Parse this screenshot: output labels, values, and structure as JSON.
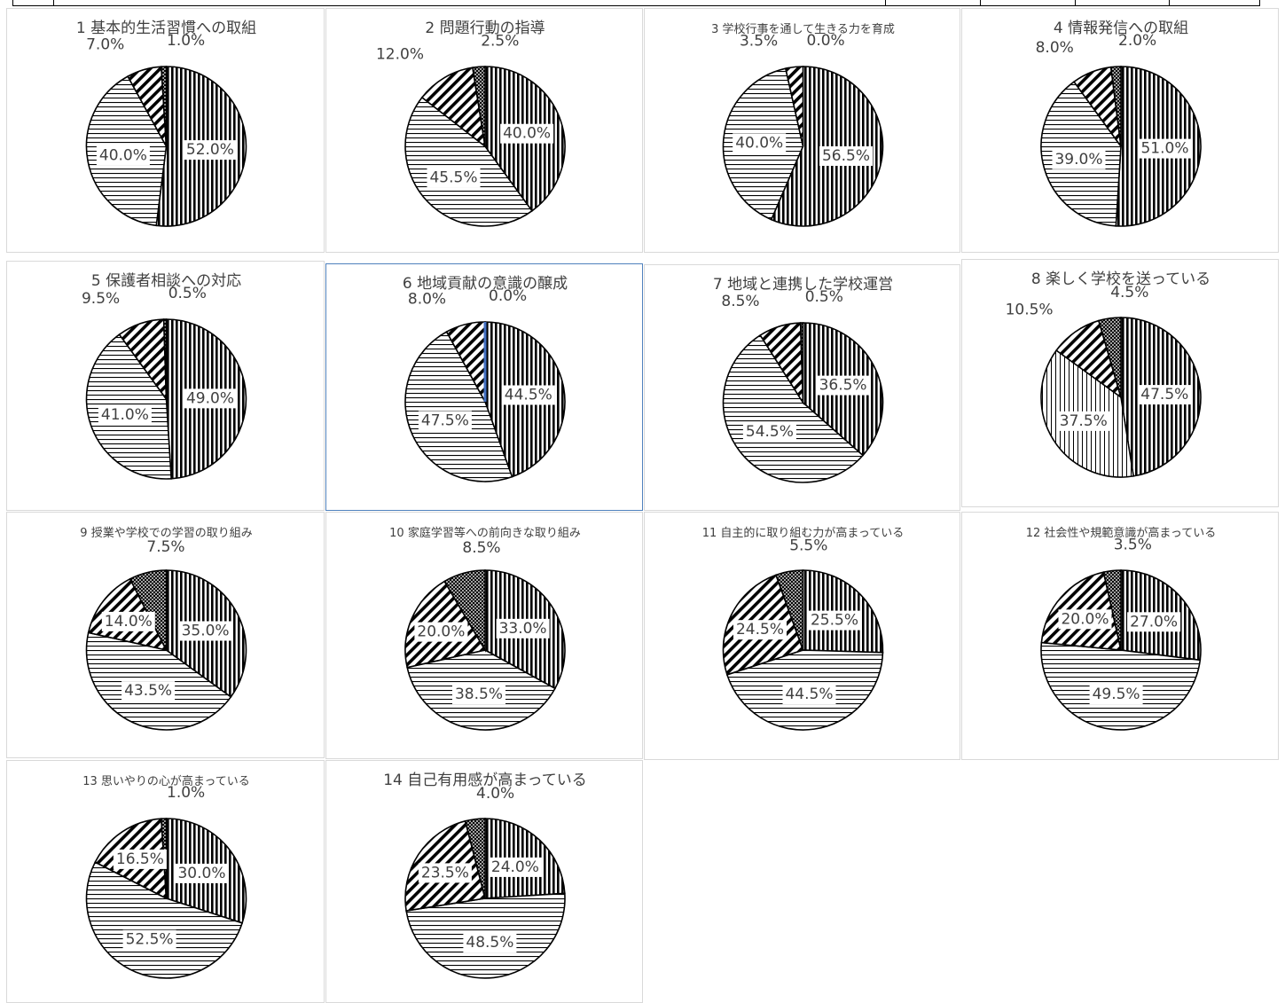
{
  "colors": {
    "outline": "#000000",
    "text": "#404040",
    "panel_border": "#d9d9d9",
    "selected_border": "#4f81bd"
  },
  "slice_patterns": [
    "vertical-lines",
    "horizontal-lines",
    "diagonal-stripes",
    "crosshatch"
  ],
  "chart_data": [
    {
      "type": "pie",
      "title": "1 基本的生活習慣への取組",
      "values": [
        52.0,
        40.0,
        7.0,
        1.0
      ],
      "labels": [
        "52.0%",
        "40.0%",
        "7.0%",
        "1.0%"
      ]
    },
    {
      "type": "pie",
      "title": "2 問題行動の指導",
      "values": [
        40.0,
        45.5,
        12.0,
        2.5
      ],
      "labels": [
        "40.0%",
        "45.5%",
        "12.0%",
        "2.5%"
      ]
    },
    {
      "type": "pie",
      "title": "3 学校行事を通して生きる力を育成",
      "values": [
        56.5,
        40.0,
        3.5,
        0.0
      ],
      "labels": [
        "56.5%",
        "40.0%",
        "3.5%",
        "0.0%"
      ]
    },
    {
      "type": "pie",
      "title": "4 情報発信への取組",
      "values": [
        51.0,
        39.0,
        8.0,
        2.0
      ],
      "labels": [
        "51.0%",
        "39.0%",
        "8.0%",
        "2.0%"
      ]
    },
    {
      "type": "pie",
      "title": "5 保護者相談への対応",
      "values": [
        49.0,
        41.0,
        9.5,
        0.5
      ],
      "labels": [
        "49.0%",
        "41.0%",
        "9.5%",
        "0.5%"
      ]
    },
    {
      "type": "pie",
      "title": "6 地域貢献の意識の醸成",
      "values": [
        44.5,
        47.5,
        8.0,
        0.0
      ],
      "labels": [
        "44.5%",
        "47.5%",
        "8.0%",
        "0.0%"
      ]
    },
    {
      "type": "pie",
      "title": "7 地域と連携した学校運営",
      "values": [
        36.5,
        54.5,
        8.5,
        0.5
      ],
      "labels": [
        "36.5%",
        "54.5%",
        "8.5%",
        "0.5%"
      ]
    },
    {
      "type": "pie",
      "title": "8 楽しく学校を送っている",
      "values": [
        47.5,
        37.5,
        10.5,
        4.5
      ],
      "labels": [
        "47.5%",
        "37.5%",
        "10.5%",
        "4.5%"
      ]
    },
    {
      "type": "pie",
      "title": "9 授業や学校での学習の取り組み",
      "values": [
        35.0,
        43.5,
        14.0,
        7.5
      ],
      "labels": [
        "35.0%",
        "43.5%",
        "14.0%",
        "7.5%"
      ]
    },
    {
      "type": "pie",
      "title": "10 家庭学習等への前向きな取り組み",
      "values": [
        33.0,
        38.5,
        20.0,
        8.5
      ],
      "labels": [
        "33.0%",
        "38.5%",
        "20.0%",
        "8.5%"
      ]
    },
    {
      "type": "pie",
      "title": "11 自主的に取り組む力が高まっている",
      "values": [
        25.5,
        44.5,
        24.5,
        5.5
      ],
      "labels": [
        "25.5%",
        "44.5%",
        "24.5%",
        "5.5%"
      ]
    },
    {
      "type": "pie",
      "title": "12 社会性や規範意識が高まっている",
      "values": [
        27.0,
        49.5,
        20.0,
        3.5
      ],
      "labels": [
        "27.0%",
        "49.5%",
        "20.0%",
        "3.5%"
      ]
    },
    {
      "type": "pie",
      "title": "13 思いやりの心が高まっている",
      "values": [
        30.0,
        52.5,
        16.5,
        1.0
      ],
      "labels": [
        "30.0%",
        "52.5%",
        "16.5%",
        "1.0%"
      ]
    },
    {
      "type": "pie",
      "title": "14 自己有用感が高まっている",
      "values": [
        24.0,
        48.5,
        23.5,
        4.0
      ],
      "labels": [
        "24.0%",
        "48.5%",
        "23.5%",
        "4.0%"
      ]
    }
  ]
}
